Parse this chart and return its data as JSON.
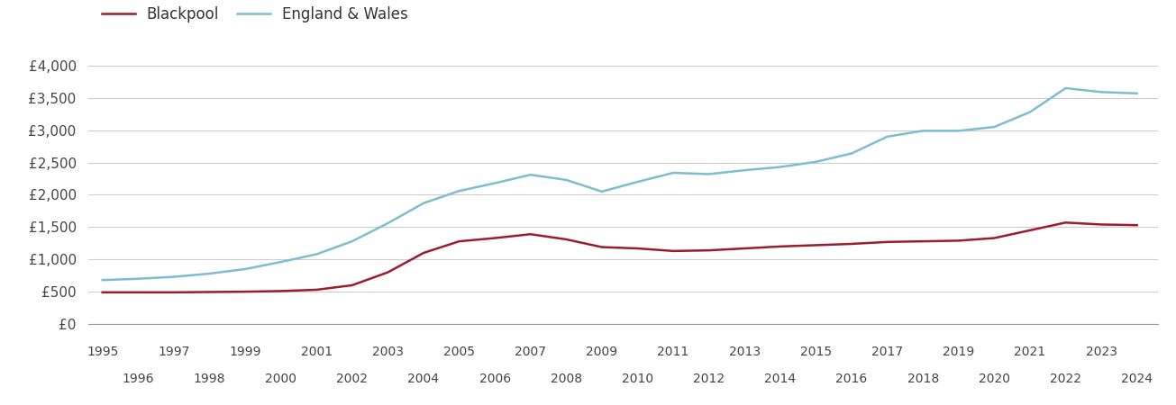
{
  "years": [
    1995,
    1996,
    1997,
    1998,
    1999,
    2000,
    2001,
    2002,
    2003,
    2004,
    2005,
    2006,
    2007,
    2008,
    2009,
    2010,
    2011,
    2012,
    2013,
    2014,
    2015,
    2016,
    2017,
    2018,
    2019,
    2020,
    2021,
    2022,
    2023,
    2024
  ],
  "blackpool": [
    490,
    490,
    490,
    495,
    500,
    510,
    530,
    600,
    800,
    1100,
    1280,
    1330,
    1390,
    1310,
    1190,
    1170,
    1130,
    1140,
    1170,
    1200,
    1220,
    1240,
    1270,
    1280,
    1290,
    1330,
    1450,
    1570,
    1540,
    1530
  ],
  "england_wales": [
    680,
    700,
    730,
    780,
    850,
    960,
    1080,
    1280,
    1560,
    1870,
    2060,
    2180,
    2310,
    2230,
    2050,
    2200,
    2340,
    2320,
    2380,
    2430,
    2510,
    2640,
    2900,
    2990,
    2990,
    3050,
    3280,
    3650,
    3590,
    3570
  ],
  "blackpool_color": "#9b1c2e",
  "england_wales_color": "#7fbcd2",
  "background_color": "#ffffff",
  "grid_color": "#cccccc",
  "ytick_labels": [
    "£0",
    "£500",
    "£1,000",
    "£1,500",
    "£2,000",
    "£2,500",
    "£3,000",
    "£3,500",
    "£4,000"
  ],
  "ytick_values": [
    0,
    500,
    1000,
    1500,
    2000,
    2500,
    3000,
    3500,
    4000
  ],
  "ylim": [
    0,
    4200
  ],
  "xlim_left": 1994.6,
  "xlim_right": 2024.6,
  "legend_blackpool": "Blackpool",
  "legend_ew": "England & Wales",
  "line_width": 1.8
}
